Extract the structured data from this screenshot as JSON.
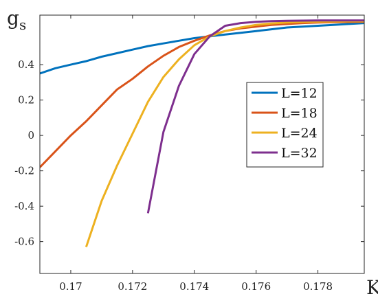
{
  "chart_data": {
    "type": "line",
    "title": "",
    "xlabel": "K",
    "ylabel": "g",
    "ylabel_subscript": "s",
    "xlim": [
      0.169,
      0.1795
    ],
    "ylim": [
      -0.78,
      0.68
    ],
    "xticks": [
      0.17,
      0.172,
      0.174,
      0.176,
      0.178
    ],
    "xtick_labels": [
      "0.17",
      "0.172",
      "0.174",
      "0.176",
      "0.178"
    ],
    "yticks": [
      -0.6,
      -0.4,
      -0.2,
      0,
      0.2,
      0.4
    ],
    "ytick_labels": [
      "-0.6",
      "-0.4",
      "-0.2",
      "0",
      "0.2",
      "0.4"
    ],
    "grid": false,
    "legend_position": "right",
    "series": [
      {
        "name": "L=12",
        "color": "#0072BD",
        "x": [
          0.169,
          0.1695,
          0.17,
          0.1705,
          0.171,
          0.1715,
          0.172,
          0.1725,
          0.173,
          0.1735,
          0.174,
          0.1745,
          0.175,
          0.1755,
          0.176,
          0.1765,
          0.177,
          0.1775,
          0.178,
          0.1785,
          0.179,
          0.1795
        ],
        "y": [
          0.35,
          0.38,
          0.4,
          0.42,
          0.445,
          0.465,
          0.485,
          0.505,
          0.52,
          0.535,
          0.55,
          0.56,
          0.57,
          0.58,
          0.59,
          0.6,
          0.61,
          0.615,
          0.62,
          0.625,
          0.63,
          0.635
        ]
      },
      {
        "name": "L=18",
        "color": "#D95319",
        "x": [
          0.169,
          0.1695,
          0.17,
          0.1705,
          0.171,
          0.1715,
          0.172,
          0.1725,
          0.173,
          0.1735,
          0.174,
          0.1745,
          0.175,
          0.1755,
          0.176,
          0.1765,
          0.177,
          0.1775,
          0.178,
          0.1785,
          0.179,
          0.1795
        ],
        "y": [
          -0.18,
          -0.09,
          0.0,
          0.08,
          0.17,
          0.26,
          0.32,
          0.39,
          0.45,
          0.5,
          0.535,
          0.565,
          0.59,
          0.605,
          0.615,
          0.625,
          0.63,
          0.635,
          0.638,
          0.64,
          0.641,
          0.642
        ]
      },
      {
        "name": "L=24",
        "color": "#EDB120",
        "x": [
          0.1705,
          0.171,
          0.1715,
          0.172,
          0.1725,
          0.173,
          0.1735,
          0.174,
          0.1745,
          0.175,
          0.1755,
          0.176,
          0.1765,
          0.177,
          0.1775,
          0.178,
          0.1785,
          0.179,
          0.1795
        ],
        "y": [
          -0.63,
          -0.37,
          -0.17,
          0.01,
          0.19,
          0.33,
          0.43,
          0.51,
          0.56,
          0.59,
          0.61,
          0.625,
          0.633,
          0.638,
          0.641,
          0.643,
          0.644,
          0.645,
          0.645
        ]
      },
      {
        "name": "L=32",
        "color": "#7E2F8E",
        "x": [
          0.1725,
          0.173,
          0.1735,
          0.174,
          0.1745,
          0.175,
          0.1755,
          0.176,
          0.1765,
          0.177,
          0.1775,
          0.178,
          0.1785,
          0.179,
          0.1795
        ],
        "y": [
          -0.44,
          0.02,
          0.28,
          0.46,
          0.56,
          0.62,
          0.635,
          0.642,
          0.646,
          0.648,
          0.649,
          0.65,
          0.65,
          0.65,
          0.65
        ]
      }
    ]
  }
}
